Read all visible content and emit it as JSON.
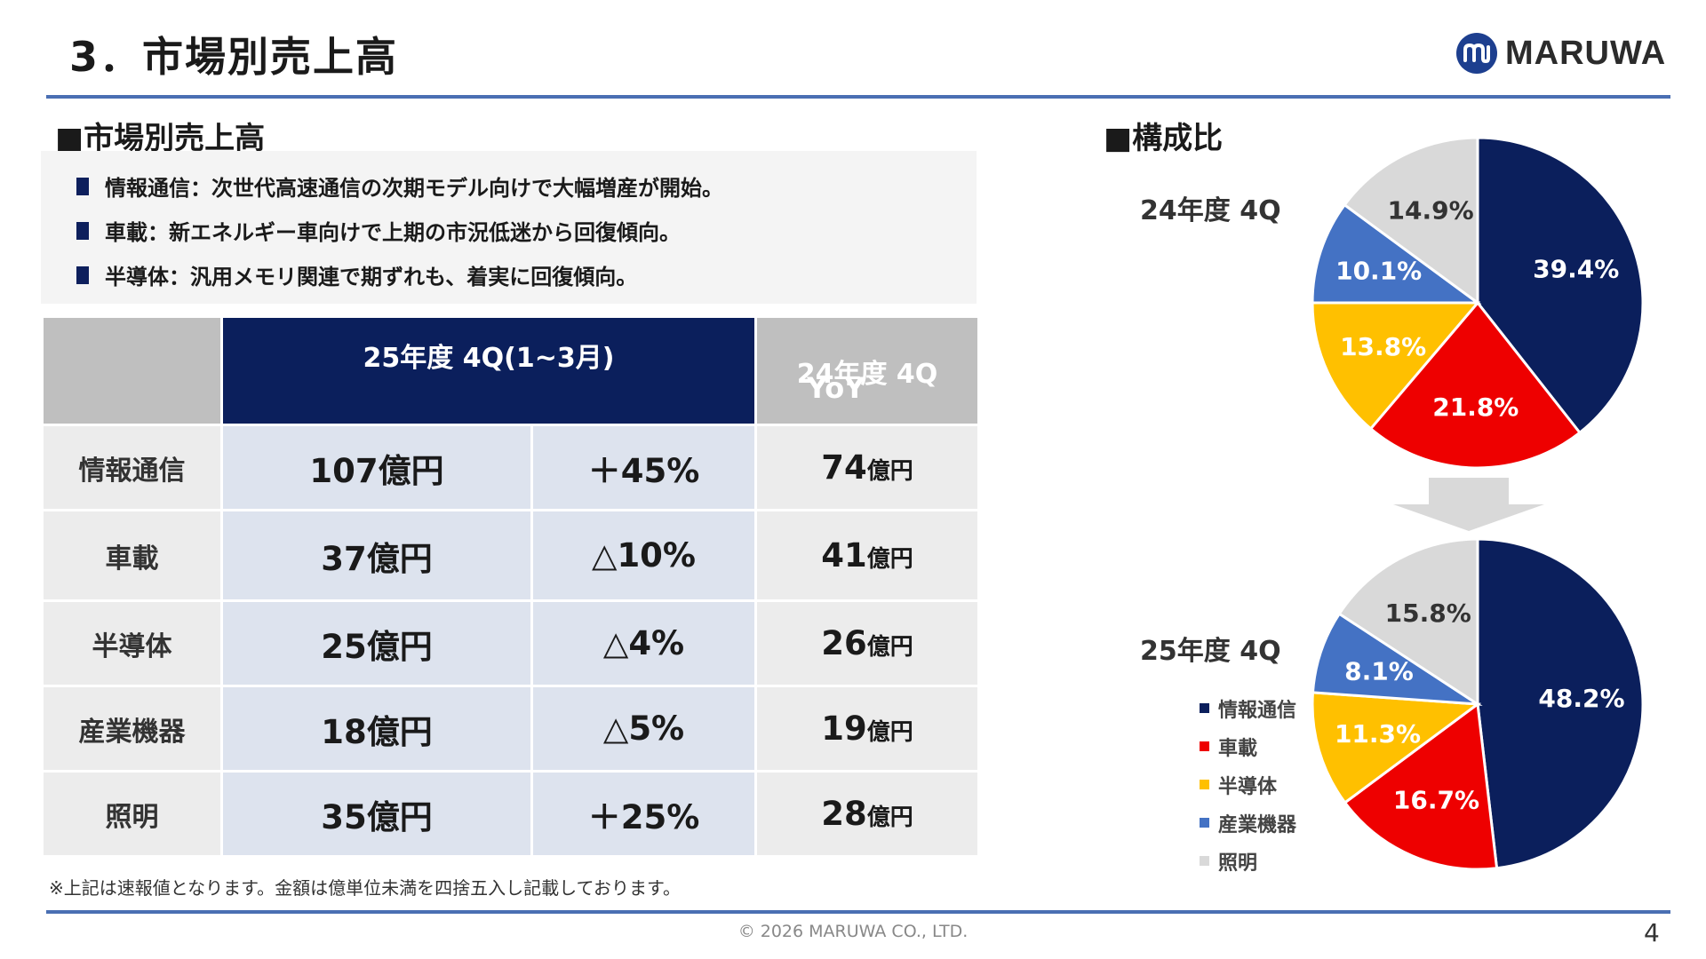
{
  "header": {
    "title": "3．市場別売上高",
    "logo_text": "MARUWA"
  },
  "left": {
    "heading": "■市場別売上高",
    "notes": [
      "情報通信：次世代高速通信の次期モデル向けで大幅増産が開始。",
      "車載：新エネルギー車向けで上期の市況低迷から回復傾向。",
      "半導体：汎用メモリ関連で期ずれも、着実に回復傾向。"
    ],
    "table": {
      "header_current": "25年度 4Q(1~3月)",
      "header_yoy": "YoY",
      "header_previous": "24年度 4Q",
      "rows": [
        {
          "label": "情報通信",
          "current": "107億円",
          "yoy": "＋45%",
          "prev_value": "74",
          "prev_unit": "億円"
        },
        {
          "label": "車載",
          "current": "37億円",
          "yoy": "△10%",
          "prev_value": "41",
          "prev_unit": "億円"
        },
        {
          "label": "半導体",
          "current": "25億円",
          "yoy": "△4%",
          "prev_value": "26",
          "prev_unit": "億円"
        },
        {
          "label": "産業機器",
          "current": "18億円",
          "yoy": "△5%",
          "prev_value": "19",
          "prev_unit": "億円"
        },
        {
          "label": "照明",
          "current": "35億円",
          "yoy": "＋25%",
          "prev_value": "28",
          "prev_unit": "億円"
        }
      ]
    },
    "footnote": "※上記は速報値となります。金額は億単位未満を四捨五入し記載しております。"
  },
  "right": {
    "heading": "■構成比",
    "pie_top_label": "24年度 4Q",
    "pie_bottom_label": "25年度 4Q"
  },
  "colors": {
    "navy": "#0b1f5c",
    "red": "#ee0000",
    "yellow": "#ffc000",
    "blue": "#4472c4",
    "gray": "#d9d9d9",
    "rule": "#4a6fb3"
  },
  "chart_data": [
    {
      "type": "pie",
      "title": "24年度 4Q",
      "categories": [
        "情報通信",
        "車載",
        "半導体",
        "産業機器",
        "照明"
      ],
      "values": [
        39.4,
        21.8,
        13.8,
        10.1,
        14.9
      ],
      "labels": [
        "39.4%",
        "21.8%",
        "13.8%",
        "10.1%",
        "14.9%"
      ]
    },
    {
      "type": "pie",
      "title": "25年度 4Q",
      "categories": [
        "情報通信",
        "車載",
        "半導体",
        "産業機器",
        "照明"
      ],
      "values": [
        48.2,
        16.7,
        11.3,
        8.1,
        15.8
      ],
      "labels": [
        "48.2%",
        "16.7%",
        "11.3%",
        "8.1%",
        "15.8%"
      ],
      "legend": [
        "情報通信",
        "車載",
        "半導体",
        "産業機器",
        "照明"
      ],
      "legend_position": "left"
    }
  ],
  "footer": {
    "copyright": "© 2026 MARUWA CO., LTD.",
    "page_number": "4"
  }
}
